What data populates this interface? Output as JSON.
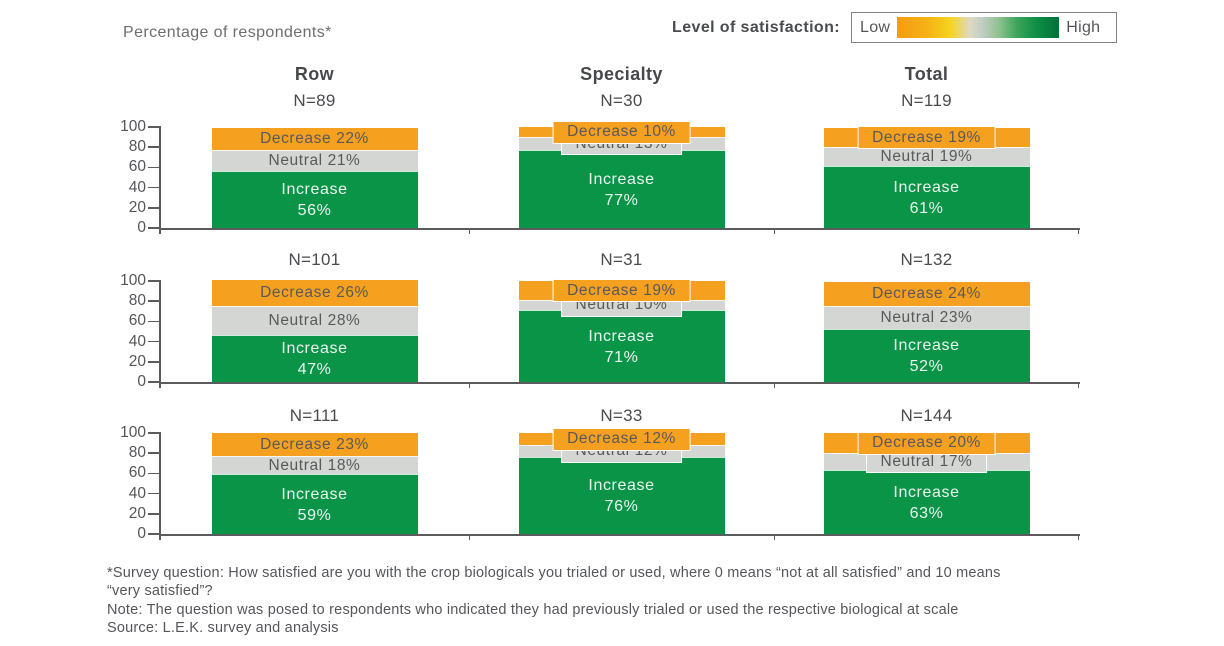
{
  "page": {
    "title": "Percentage of respondents*"
  },
  "legend": {
    "label": "Level of satisfaction:",
    "low": "Low",
    "high": "High"
  },
  "footnotes": [
    "*Survey question: How satisfied are you with the crop biologicals you trialed or used, where 0 means “not at all satisfied” and 10 means",
    "“very satisfied”?",
    "Note: The question was posed to respondents who indicated they had previously trialed or used the respective biological at scale",
    "Source: L.E.K. survey and analysis"
  ],
  "colors": {
    "decrease": "#F6A020",
    "neutral": "#D3D6D3",
    "increase": "#0A9448",
    "axis": "#5A5B5D",
    "segment_text": "#58595B",
    "increase_text": "#EAF6EF"
  },
  "chart_data": {
    "type": "bar",
    "stacked": true,
    "title": "Percentage of respondents*",
    "ylabel": "Percentage of respondents",
    "ylim": [
      0,
      100
    ],
    "yticks": [
      0,
      20,
      40,
      60,
      80,
      100
    ],
    "grid": false,
    "legend_position": "top-right",
    "legend_title": "Level of satisfaction:",
    "columns": [
      "Row",
      "Specialty",
      "Total"
    ],
    "segment_labels": {
      "decrease": "Decrease",
      "neutral": "Neutral",
      "increase": "Increase"
    },
    "rows": [
      [
        {
          "n_label": "N=89",
          "decrease": 22,
          "neutral": 21,
          "increase": 56
        },
        {
          "n_label": "N=30",
          "decrease": 10,
          "neutral": 13,
          "increase": 77
        },
        {
          "n_label": "N=119",
          "decrease": 19,
          "neutral": 19,
          "increase": 61
        }
      ],
      [
        {
          "n_label": "N=101",
          "decrease": 26,
          "neutral": 28,
          "increase": 47
        },
        {
          "n_label": "N=31",
          "decrease": 19,
          "neutral": 10,
          "increase": 71
        },
        {
          "n_label": "N=132",
          "decrease": 24,
          "neutral": 23,
          "increase": 52
        }
      ],
      [
        {
          "n_label": "N=111",
          "decrease": 23,
          "neutral": 18,
          "increase": 59
        },
        {
          "n_label": "N=33",
          "decrease": 12,
          "neutral": 12,
          "increase": 76
        },
        {
          "n_label": "N=144",
          "decrease": 20,
          "neutral": 17,
          "increase": 63
        }
      ]
    ]
  }
}
